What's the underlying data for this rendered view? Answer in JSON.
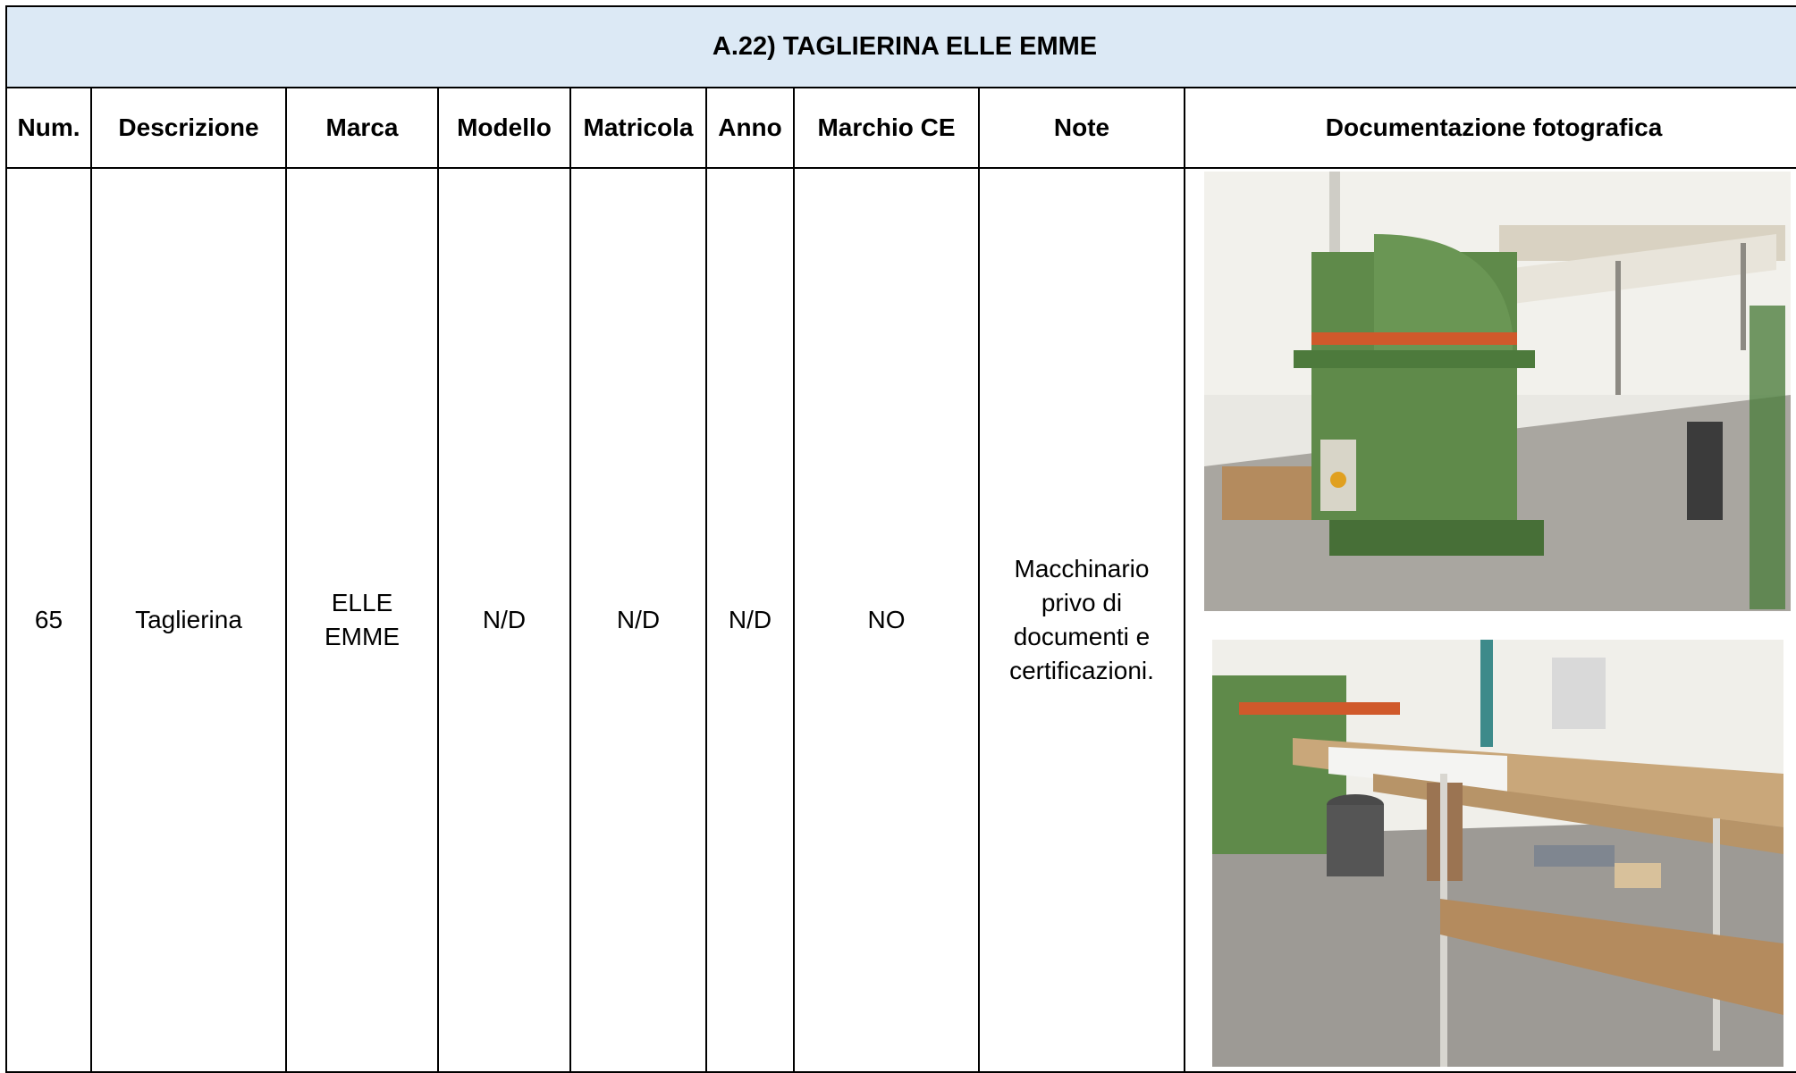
{
  "header": {
    "title": "A.22) TAGLIERINA ELLE EMME"
  },
  "table": {
    "columns": [
      "Num.",
      "Descrizione",
      "Marca",
      "Modello",
      "Matricola",
      "Anno",
      "Marchio CE",
      "Note",
      "Documentazione fotografica"
    ],
    "rows": [
      [
        "65",
        "Taglierina",
        "ELLE EMME",
        "N/D",
        "N/D",
        "N/D",
        "NO",
        "Macchinario privo di documenti e certificazioni."
      ]
    ]
  }
}
